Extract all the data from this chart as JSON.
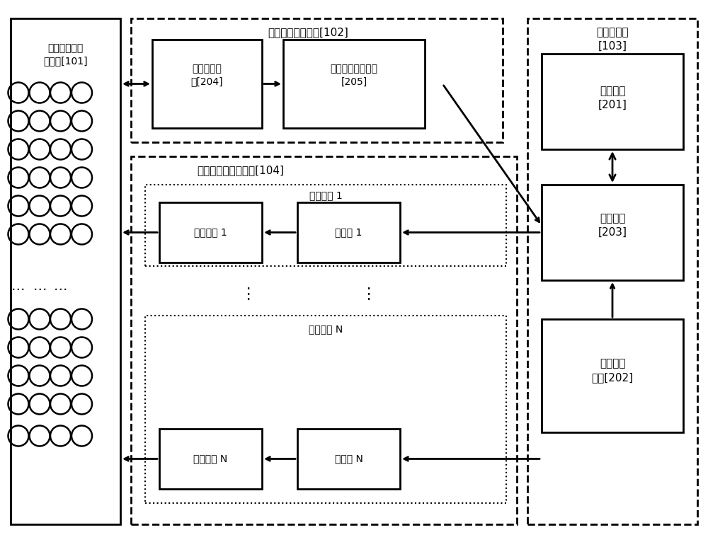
{
  "bg_color": "#ffffff",
  "text_color": "#000000",
  "box_color": "#000000",
  "sensor_label": "超声阵列传感\n器阵列[101]",
  "scan_circuit_label": "手部位置扫描电路[102]",
  "txrx_label": "收发控制电\n路[204]",
  "multipoint_label": "多点位置提取电路\n[205]",
  "focus_circuit_label": "传感器阵列聚焦电路[104]",
  "focus_ch1_label": "聚焦通道 1",
  "focus_chN_label": "聚焦通道 N",
  "drive1_label": "驱动电路 1",
  "ctrl1_label": "控制器 1",
  "driveN_label": "驱动电路 N",
  "ctrlN_label": "控制器 N",
  "main_circuit_label": "主控制电路\n[103]",
  "main_ctrl_label": "主控制器\n[201]",
  "interface_label": "接口电路\n[203]",
  "signal_label": "信号发生\n电路[202]"
}
